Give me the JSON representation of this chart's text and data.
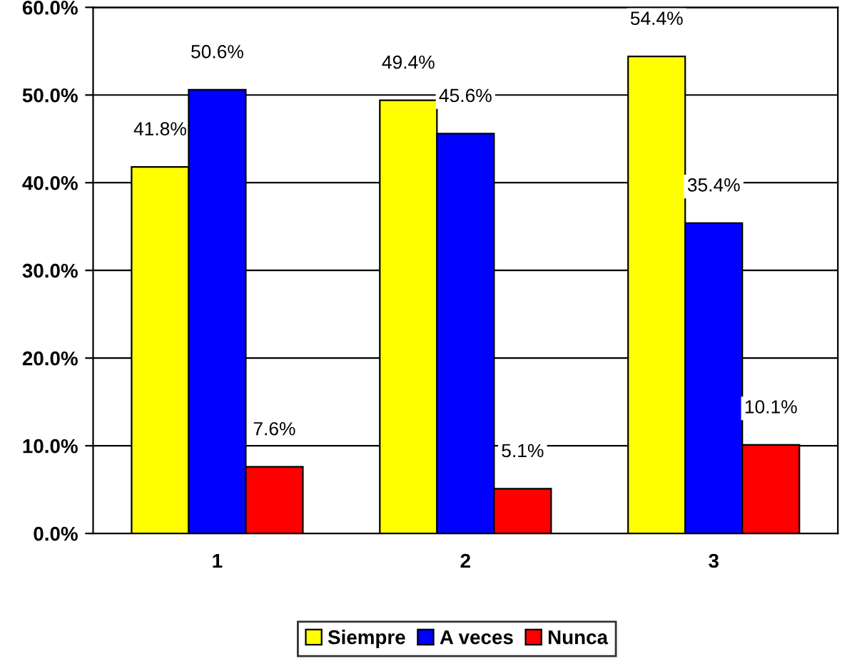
{
  "chart_data": {
    "type": "bar",
    "categories": [
      "1",
      "2",
      "3"
    ],
    "series": [
      {
        "name": "Siempre",
        "color": "#ffff00",
        "values": [
          41.8,
          49.4,
          54.4
        ],
        "value_labels": [
          "41.8%",
          "49.4%",
          "54.4%"
        ]
      },
      {
        "name": "A veces",
        "color": "#0000ff",
        "values": [
          50.6,
          45.6,
          35.4
        ],
        "value_labels": [
          "50.6%",
          "45.6%",
          "35.4%"
        ]
      },
      {
        "name": "Nunca",
        "color": "#ff0000",
        "values": [
          7.6,
          5.1,
          10.1
        ],
        "value_labels": [
          "7.6%",
          "5.1%",
          "10.1%"
        ]
      }
    ],
    "ylim": [
      0,
      60
    ],
    "yticks": [
      {
        "value": 0,
        "label": "0.0%"
      },
      {
        "value": 10,
        "label": "10.0%"
      },
      {
        "value": 20,
        "label": "20.0%"
      },
      {
        "value": 30,
        "label": "30.0%"
      },
      {
        "value": 40,
        "label": "40.0%"
      },
      {
        "value": 50,
        "label": "50.0%"
      },
      {
        "value": 60,
        "label": "60.0%"
      }
    ],
    "grid": "y",
    "legend": "bottom"
  }
}
